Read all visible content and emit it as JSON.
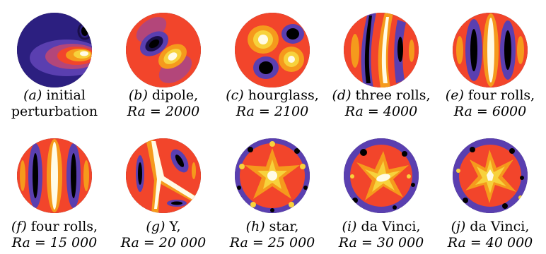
{
  "palette": {
    "deep": "#1a0f4a",
    "purple": "#3f2a9e",
    "violet": "#6a4fb8",
    "red": "#f2452b",
    "orange": "#ff6a2a",
    "amber": "#f59a1c",
    "yellow": "#f7d23c",
    "white": "#fffbe6",
    "black": "#000000",
    "mauve": "#b3467a"
  },
  "panels": [
    {
      "letter": "(a)",
      "line1": " initial",
      "line2": "perturbation"
    },
    {
      "letter": "(b)",
      "line1": " dipole,",
      "line2": "Ra = 2000"
    },
    {
      "letter": "(c)",
      "line1": " hourglass,",
      "line2": "Ra = 2100"
    },
    {
      "letter": "(d)",
      "line1": " three rolls,",
      "line2": "Ra = 4000"
    },
    {
      "letter": "(e)",
      "line1": " four rolls,",
      "line2": "Ra = 6000"
    },
    {
      "letter": "(f)",
      "line1": " four rolls,",
      "line2": "Ra = 15 000"
    },
    {
      "letter": "(g)",
      "line1": " Y,",
      "line2": "Ra = 20 000"
    },
    {
      "letter": "(h)",
      "line1": " star,",
      "line2": "Ra = 25 000"
    },
    {
      "letter": "(i)",
      "line1": " da Vinci,",
      "line2": "Ra = 30 000"
    },
    {
      "letter": "(j)",
      "line1": " da Vinci,",
      "line2": "Ra = 40 000"
    }
  ]
}
